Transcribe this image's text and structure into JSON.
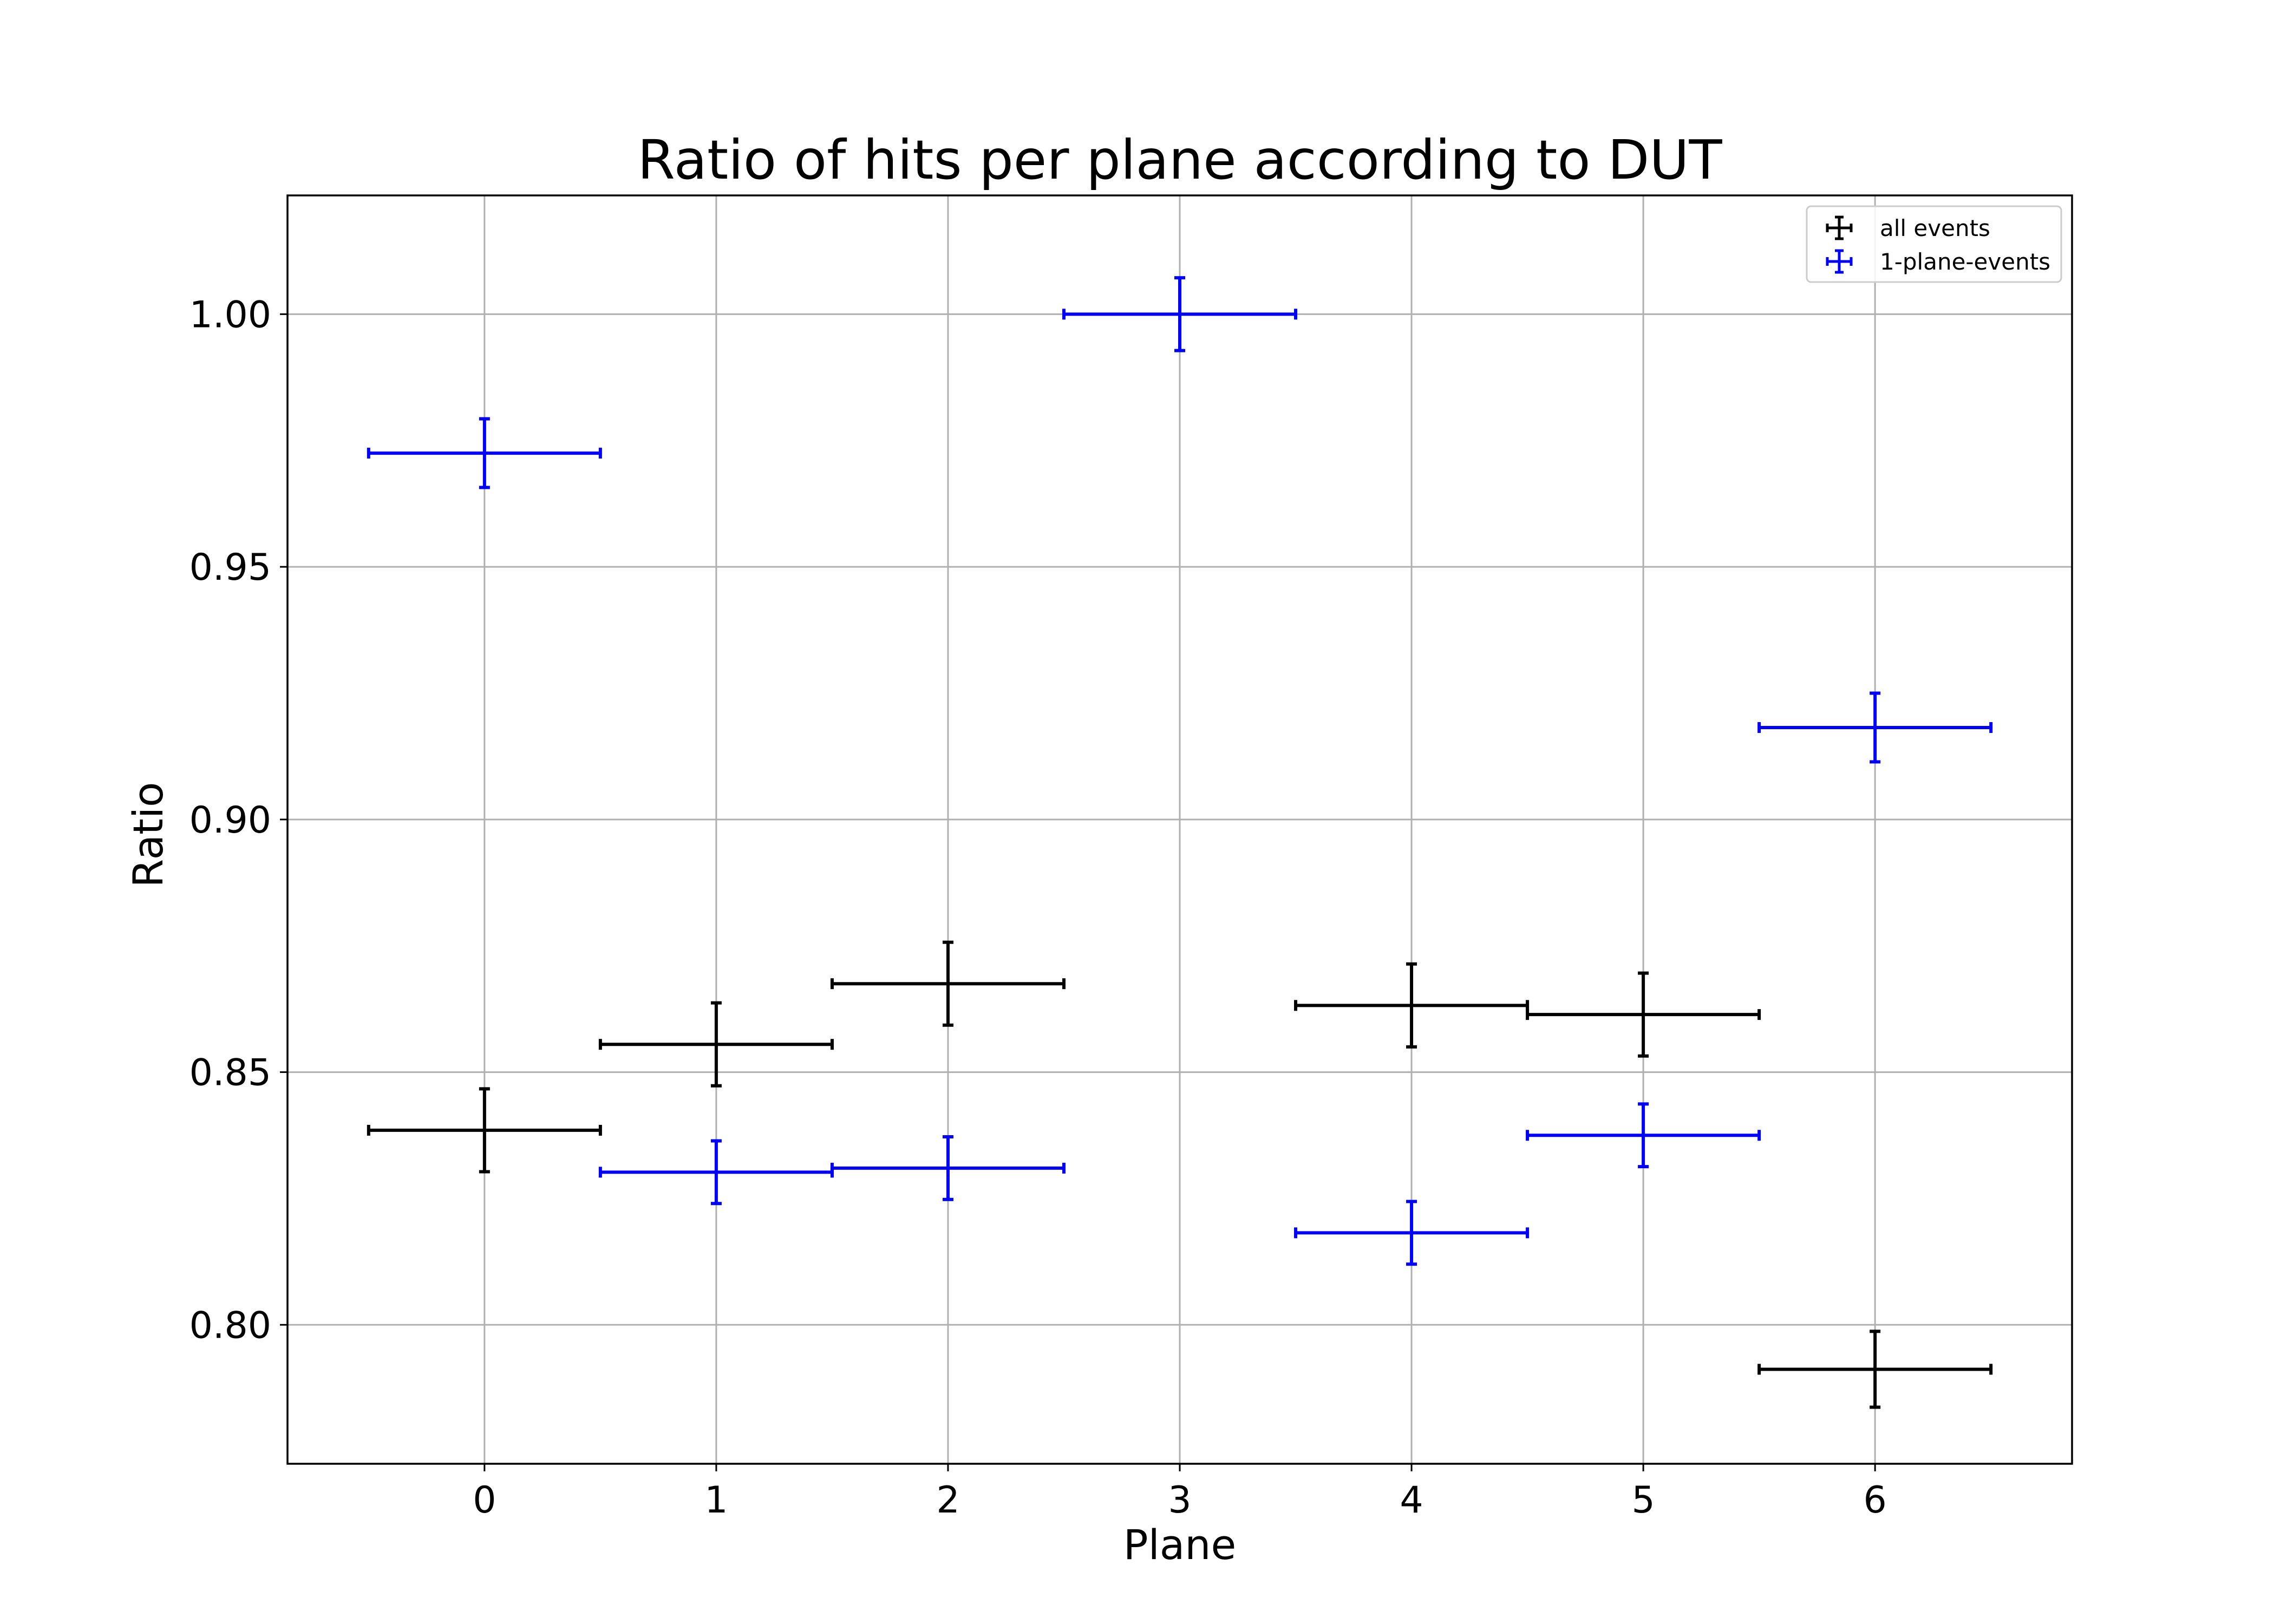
{
  "chart_data": {
    "type": "scatter",
    "title": "Ratio of hits per plane according to DUT",
    "xlabel": "Plane",
    "ylabel": "Ratio",
    "xlim": [
      -0.85,
      6.85
    ],
    "ylim": [
      0.7725,
      1.0235
    ],
    "xticks": [
      0,
      1,
      2,
      3,
      4,
      5,
      6
    ],
    "xtick_labels": [
      "0",
      "1",
      "2",
      "3",
      "4",
      "5",
      "6"
    ],
    "yticks": [
      0.8,
      0.85,
      0.9,
      0.95,
      1.0
    ],
    "ytick_labels": [
      "0.80",
      "0.85",
      "0.90",
      "0.95",
      "1.00"
    ],
    "grid": true,
    "legend": {
      "placement": "top-right"
    },
    "series": [
      {
        "name": "all events",
        "color": "#000000",
        "x": [
          0,
          1,
          2,
          4,
          5,
          6
        ],
        "y": [
          0.8385,
          0.8555,
          0.8675,
          0.8632,
          0.8614,
          0.7912
        ],
        "xerr": [
          0.5,
          0.5,
          0.5,
          0.5,
          0.5,
          0.5
        ],
        "yerr": [
          0.0082,
          0.0082,
          0.0082,
          0.0082,
          0.0082,
          0.0075
        ]
      },
      {
        "name": "1-plane-events",
        "color": "#0000ff",
        "x": [
          0,
          1,
          2,
          3,
          4,
          5,
          6
        ],
        "y": [
          0.9725,
          0.8302,
          0.831,
          1.0,
          0.8182,
          0.8375,
          0.9182
        ],
        "xerr": [
          0.5,
          0.5,
          0.5,
          0.5,
          0.5,
          0.5,
          0.5
        ],
        "yerr": [
          0.0068,
          0.0062,
          0.0062,
          0.0072,
          0.0062,
          0.0062,
          0.0068
        ]
      }
    ]
  }
}
